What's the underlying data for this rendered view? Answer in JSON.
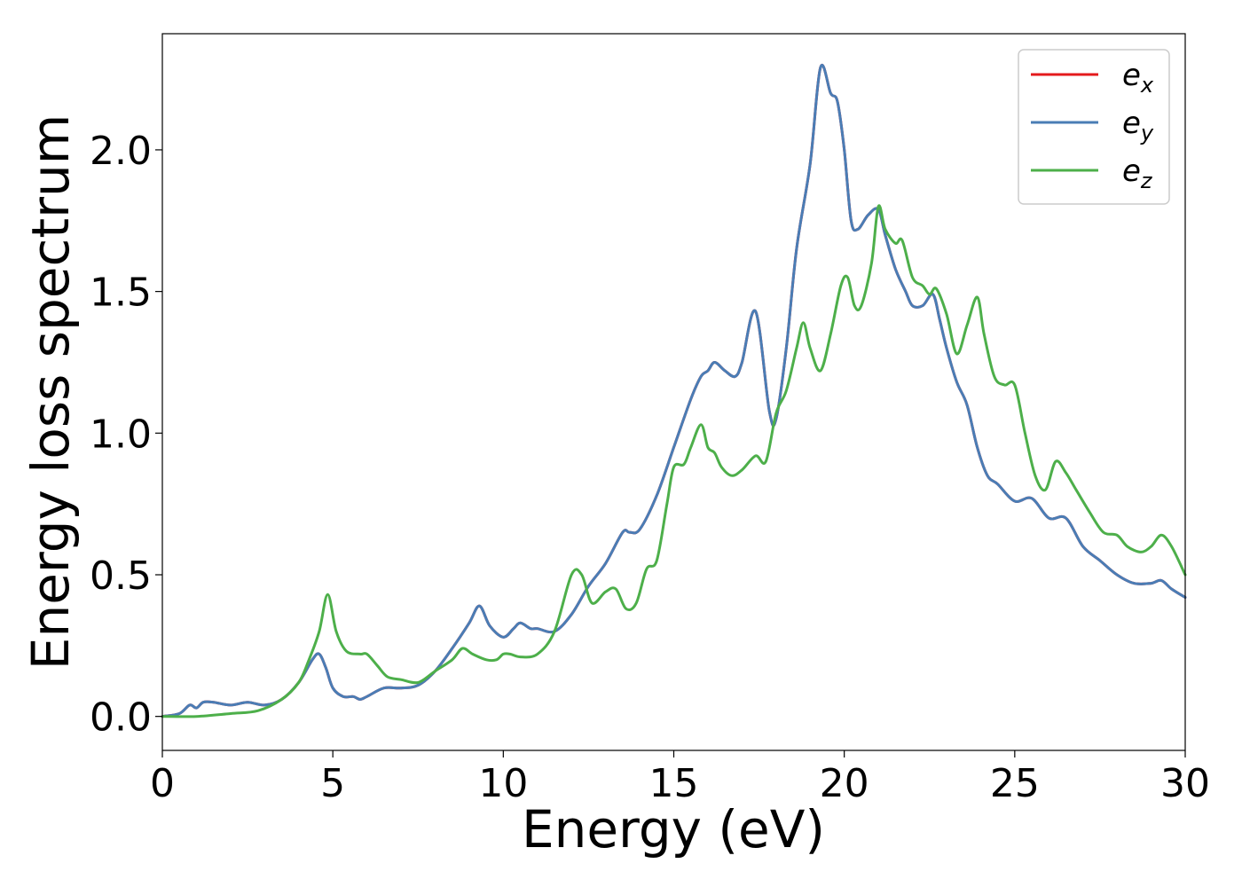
{
  "chart_data": {
    "type": "line",
    "xlabel": "Energy (eV)",
    "ylabel": "Energy loss spectrum",
    "xlim": [
      0,
      30
    ],
    "ylim": [
      -0.12,
      2.41
    ],
    "xticks": [
      0,
      5,
      10,
      15,
      20,
      25,
      30
    ],
    "xtick_labels": [
      "0",
      "5",
      "10",
      "15",
      "20",
      "25",
      "30"
    ],
    "yticks": [
      0.0,
      0.5,
      1.0,
      1.5,
      2.0
    ],
    "ytick_labels": [
      "0.0",
      "0.5",
      "1.0",
      "1.5",
      "2.0"
    ],
    "grid": false,
    "legend_position": "top-right",
    "series": [
      {
        "name": "e_x",
        "legend_base": "e",
        "legend_sub": "x",
        "color": "#e41a1c",
        "x": [
          0,
          0.5,
          0.8,
          1.0,
          1.2,
          1.5,
          2.0,
          2.5,
          3.0,
          3.5,
          4.0,
          4.4,
          4.6,
          4.8,
          5.0,
          5.3,
          5.6,
          5.8,
          6.0,
          6.5,
          7.0,
          7.5,
          8.0,
          8.5,
          9.0,
          9.3,
          9.6,
          10.0,
          10.3,
          10.5,
          10.8,
          11.0,
          11.5,
          12.0,
          12.5,
          13.0,
          13.5,
          13.7,
          14.0,
          14.5,
          15.0,
          15.5,
          15.8,
          16.0,
          16.2,
          16.5,
          16.8,
          17.0,
          17.4,
          17.8,
          18.0,
          18.3,
          18.6,
          19.0,
          19.3,
          19.6,
          19.8,
          20.0,
          20.2,
          20.4,
          20.7,
          21.0,
          21.2,
          21.5,
          21.8,
          22.0,
          22.3,
          22.6,
          22.8,
          23.0,
          23.3,
          23.6,
          23.9,
          24.2,
          24.5,
          25.0,
          25.5,
          26.0,
          26.5,
          27.0,
          27.5,
          28.0,
          28.5,
          29.0,
          29.3,
          29.6,
          30.0
        ],
        "values": [
          0,
          0.01,
          0.04,
          0.03,
          0.05,
          0.05,
          0.04,
          0.05,
          0.04,
          0.06,
          0.12,
          0.2,
          0.22,
          0.17,
          0.1,
          0.07,
          0.07,
          0.06,
          0.07,
          0.1,
          0.1,
          0.11,
          0.16,
          0.24,
          0.33,
          0.39,
          0.32,
          0.28,
          0.31,
          0.33,
          0.31,
          0.31,
          0.3,
          0.36,
          0.46,
          0.54,
          0.65,
          0.65,
          0.66,
          0.78,
          0.95,
          1.12,
          1.2,
          1.22,
          1.25,
          1.22,
          1.2,
          1.25,
          1.43,
          1.08,
          1.05,
          1.3,
          1.65,
          1.95,
          2.29,
          2.2,
          2.17,
          2.0,
          1.75,
          1.72,
          1.77,
          1.79,
          1.7,
          1.58,
          1.5,
          1.45,
          1.45,
          1.49,
          1.4,
          1.3,
          1.18,
          1.1,
          0.95,
          0.85,
          0.82,
          0.76,
          0.77,
          0.7,
          0.7,
          0.6,
          0.55,
          0.5,
          0.47,
          0.47,
          0.48,
          0.45,
          0.42
        ]
      },
      {
        "name": "e_y",
        "legend_base": "e",
        "legend_sub": "y",
        "color": "#4a7db5",
        "x": [
          0,
          0.5,
          0.8,
          1.0,
          1.2,
          1.5,
          2.0,
          2.5,
          3.0,
          3.5,
          4.0,
          4.4,
          4.6,
          4.8,
          5.0,
          5.3,
          5.6,
          5.8,
          6.0,
          6.5,
          7.0,
          7.5,
          8.0,
          8.5,
          9.0,
          9.3,
          9.6,
          10.0,
          10.3,
          10.5,
          10.8,
          11.0,
          11.5,
          12.0,
          12.5,
          13.0,
          13.5,
          13.7,
          14.0,
          14.5,
          15.0,
          15.5,
          15.8,
          16.0,
          16.2,
          16.5,
          16.8,
          17.0,
          17.4,
          17.8,
          18.0,
          18.3,
          18.6,
          19.0,
          19.3,
          19.6,
          19.8,
          20.0,
          20.2,
          20.4,
          20.7,
          21.0,
          21.2,
          21.5,
          21.8,
          22.0,
          22.3,
          22.6,
          22.8,
          23.0,
          23.3,
          23.6,
          23.9,
          24.2,
          24.5,
          25.0,
          25.5,
          26.0,
          26.5,
          27.0,
          27.5,
          28.0,
          28.5,
          29.0,
          29.3,
          29.6,
          30.0
        ],
        "values": [
          0,
          0.01,
          0.04,
          0.03,
          0.05,
          0.05,
          0.04,
          0.05,
          0.04,
          0.06,
          0.12,
          0.2,
          0.22,
          0.17,
          0.1,
          0.07,
          0.07,
          0.06,
          0.07,
          0.1,
          0.1,
          0.11,
          0.16,
          0.24,
          0.33,
          0.39,
          0.32,
          0.28,
          0.31,
          0.33,
          0.31,
          0.31,
          0.3,
          0.36,
          0.46,
          0.54,
          0.65,
          0.65,
          0.66,
          0.78,
          0.95,
          1.12,
          1.2,
          1.22,
          1.25,
          1.22,
          1.2,
          1.25,
          1.43,
          1.08,
          1.05,
          1.3,
          1.65,
          1.95,
          2.29,
          2.2,
          2.17,
          2.0,
          1.75,
          1.72,
          1.77,
          1.79,
          1.7,
          1.58,
          1.5,
          1.45,
          1.45,
          1.49,
          1.4,
          1.3,
          1.18,
          1.1,
          0.95,
          0.85,
          0.82,
          0.76,
          0.77,
          0.7,
          0.7,
          0.6,
          0.55,
          0.5,
          0.47,
          0.47,
          0.48,
          0.45,
          0.42
        ]
      },
      {
        "name": "e_z",
        "legend_base": "e",
        "legend_sub": "z",
        "color": "#4daf4a",
        "x": [
          0,
          1.0,
          2.0,
          2.8,
          3.5,
          4.0,
          4.3,
          4.6,
          4.85,
          5.1,
          5.4,
          5.8,
          6.0,
          6.3,
          6.6,
          7.0,
          7.5,
          8.0,
          8.5,
          8.8,
          9.1,
          9.5,
          9.8,
          10.0,
          10.2,
          10.5,
          11.0,
          11.5,
          12.0,
          12.3,
          12.6,
          13.0,
          13.3,
          13.6,
          13.9,
          14.2,
          14.5,
          14.8,
          15.0,
          15.3,
          15.5,
          15.8,
          16.0,
          16.2,
          16.4,
          16.7,
          17.0,
          17.4,
          17.7,
          18.0,
          18.3,
          18.6,
          18.8,
          19.0,
          19.3,
          19.6,
          19.9,
          20.1,
          20.3,
          20.5,
          20.8,
          21.0,
          21.2,
          21.5,
          21.7,
          22.0,
          22.3,
          22.5,
          22.7,
          23.0,
          23.3,
          23.6,
          23.9,
          24.1,
          24.4,
          24.7,
          25.0,
          25.3,
          25.6,
          25.9,
          26.2,
          26.5,
          26.8,
          27.2,
          27.6,
          28.0,
          28.3,
          28.7,
          29.0,
          29.3,
          29.6,
          30.0
        ],
        "values": [
          0,
          0.0,
          0.01,
          0.02,
          0.06,
          0.12,
          0.2,
          0.3,
          0.43,
          0.3,
          0.23,
          0.22,
          0.22,
          0.18,
          0.14,
          0.13,
          0.12,
          0.16,
          0.2,
          0.24,
          0.22,
          0.2,
          0.2,
          0.22,
          0.22,
          0.21,
          0.22,
          0.3,
          0.5,
          0.5,
          0.4,
          0.44,
          0.45,
          0.38,
          0.4,
          0.52,
          0.55,
          0.75,
          0.88,
          0.89,
          0.95,
          1.03,
          0.95,
          0.93,
          0.88,
          0.85,
          0.87,
          0.92,
          0.9,
          1.07,
          1.15,
          1.3,
          1.39,
          1.3,
          1.22,
          1.35,
          1.52,
          1.55,
          1.45,
          1.45,
          1.6,
          1.8,
          1.72,
          1.67,
          1.68,
          1.55,
          1.52,
          1.49,
          1.51,
          1.42,
          1.28,
          1.38,
          1.48,
          1.35,
          1.2,
          1.17,
          1.17,
          1.0,
          0.85,
          0.8,
          0.9,
          0.86,
          0.8,
          0.72,
          0.65,
          0.64,
          0.6,
          0.58,
          0.6,
          0.64,
          0.6,
          0.5
        ]
      }
    ]
  }
}
